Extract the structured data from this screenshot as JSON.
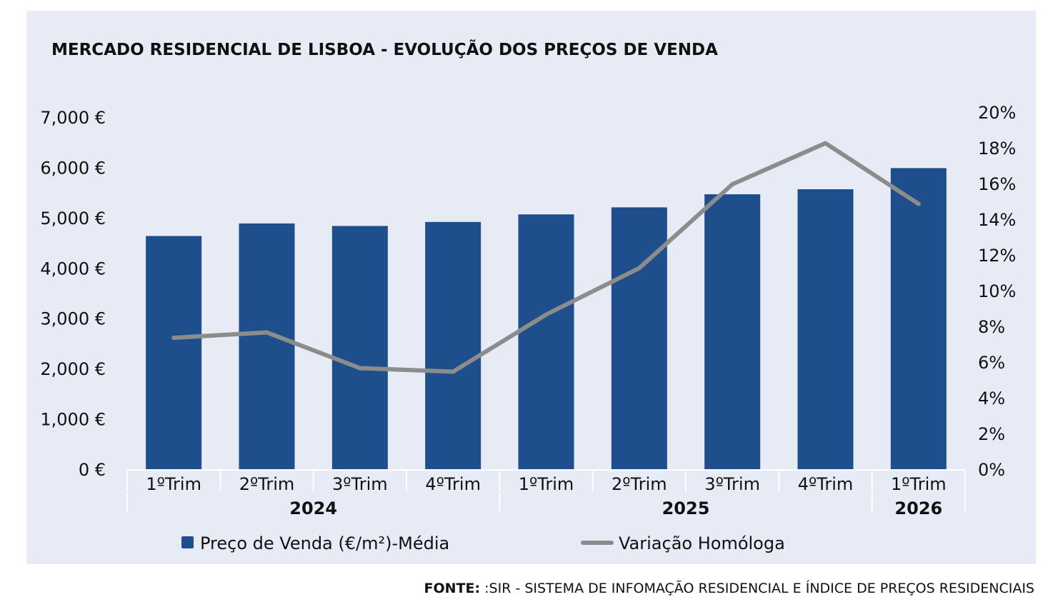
{
  "source": {
    "label": "FONTE:",
    "text": " :SIR - SISTEMA DE INFOMAÇÃO RESIDENCIAL E ÍNDICE DE PREÇOS RESIDENCIAIS"
  },
  "chart_data": {
    "type": "bar",
    "title": "MERCADO RESIDENCIAL DE LISBOA - EVOLUÇÃO DOS PREÇOS DE VENDA",
    "categories": [
      "1ºTrim",
      "2ºTrim",
      "3ºTrim",
      "4ºTrim",
      "1ºTrim",
      "2ºTrim",
      "3ºTrim",
      "4ºTrim",
      "1ºTrim"
    ],
    "groups": [
      {
        "label": "2024",
        "count": 4
      },
      {
        "label": "2025",
        "count": 4
      },
      {
        "label": "2026",
        "count": 1
      }
    ],
    "series": [
      {
        "name": "Preço de Venda (€/m²)-Média",
        "type": "bar",
        "axis": "left",
        "color": "#1f4e8c",
        "values": [
          4650,
          4900,
          4850,
          4930,
          5080,
          5220,
          5480,
          5580,
          6000
        ]
      },
      {
        "name": "Variação Homóloga",
        "type": "line",
        "axis": "right",
        "color": "#8c8c8c",
        "values": [
          7.4,
          7.7,
          5.7,
          5.5,
          8.7,
          11.3,
          16.0,
          18.3,
          14.9
        ]
      }
    ],
    "yaxis_left": {
      "min": 0,
      "max": 7000,
      "tick_values": [
        0,
        1000,
        2000,
        3000,
        4000,
        5000,
        6000,
        7000
      ],
      "tick_labels": [
        "0 €",
        "1,000 €",
        "2,000 €",
        "3,000 €",
        "4,000 €",
        "5,000 €",
        "6,000 €",
        "7,000 €"
      ]
    },
    "yaxis_right": {
      "min": 0,
      "max": 20,
      "tick_values": [
        0,
        2,
        4,
        6,
        8,
        10,
        12,
        14,
        16,
        18,
        20
      ],
      "tick_labels": [
        "0%",
        "2%",
        "4%",
        "6%",
        "8%",
        "10%",
        "12%",
        "14%",
        "16%",
        "18%",
        "20%"
      ]
    },
    "grid": false,
    "legend_position": "bottom"
  }
}
